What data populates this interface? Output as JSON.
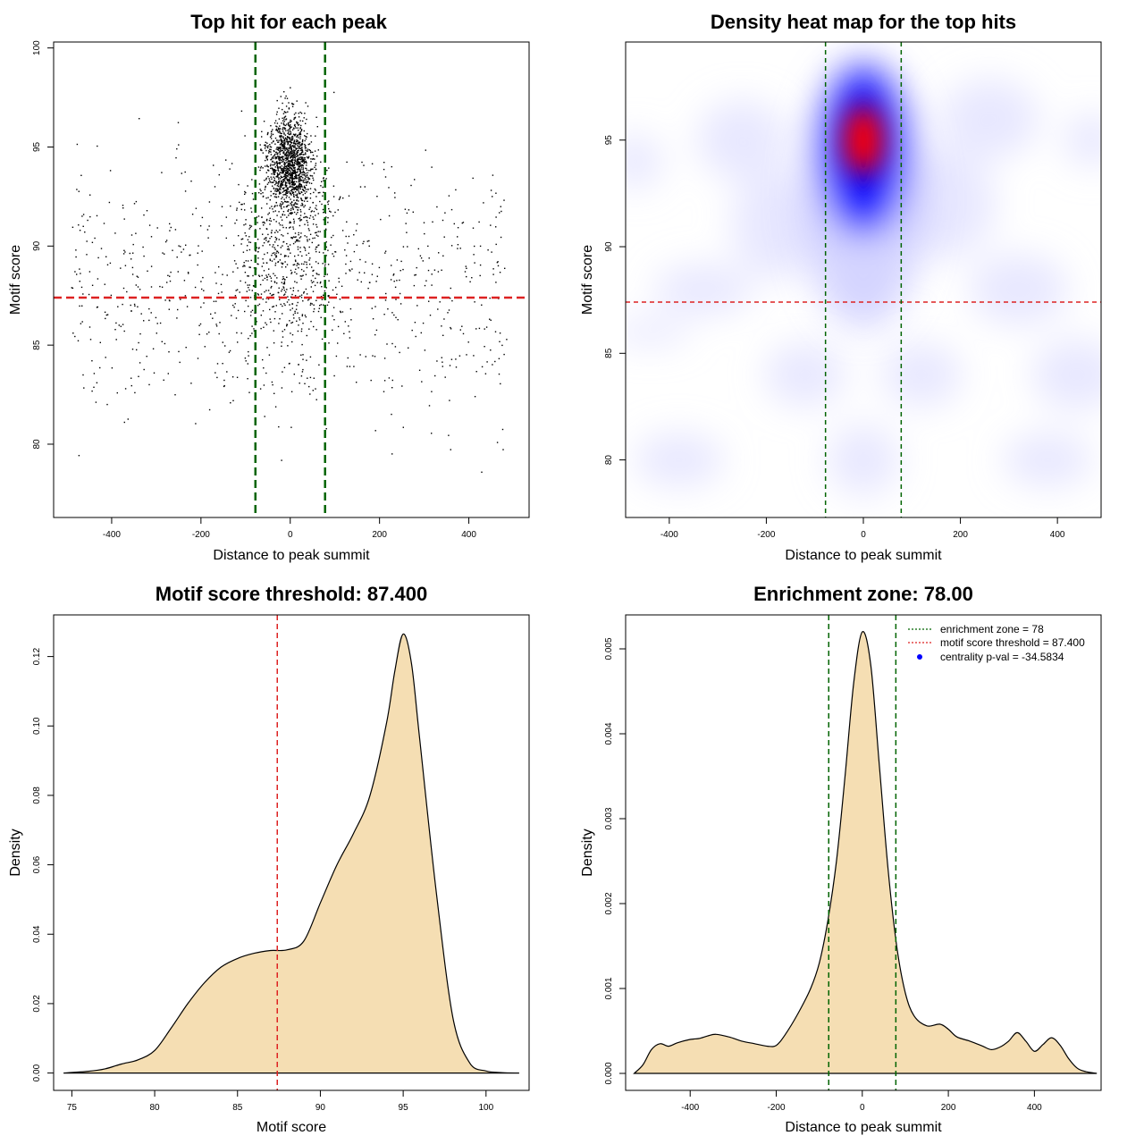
{
  "chart_data": [
    {
      "type": "scatter",
      "title": "Top hit for each peak",
      "xlabel": "Distance to peak summit",
      "ylabel": "Motif score",
      "xlim": [
        -530,
        535
      ],
      "ylim": [
        76.3,
        100.3
      ],
      "x_ticks": [
        "-400",
        "-200",
        "0",
        "200",
        "400"
      ],
      "y_ticks": [
        "80",
        "85",
        "90",
        "95",
        "100"
      ],
      "x_tick_values": [
        -400,
        -200,
        0,
        200,
        400
      ],
      "y_tick_values": [
        80,
        85,
        90,
        95,
        100
      ],
      "grid": false,
      "point_color": "#000000",
      "hlines": [
        {
          "value": 87.4,
          "color": "#dd2222"
        }
      ],
      "vlines": [
        {
          "value": -78,
          "color": "#006400"
        },
        {
          "value": 78,
          "color": "#006400"
        }
      ],
      "clusters": [
        {
          "x_center": 0,
          "x_spread": 42,
          "y_center": 94.2,
          "y_spread": 2.0,
          "count": 1300
        },
        {
          "x_center": 0,
          "x_spread": 95,
          "y_center": 90.0,
          "y_spread": 4.6,
          "count": 650
        },
        {
          "x_center": 0,
          "x_spread": 300,
          "y_center": 88.0,
          "y_spread": 5.5,
          "count": 750
        }
      ],
      "y_max": 99.3
    },
    {
      "type": "heatmap",
      "title": "Density heat map for the top hits",
      "xlabel": "Distance to peak summit",
      "ylabel": "Motif score",
      "xlim": [
        -490,
        490
      ],
      "ylim": [
        77.3,
        99.6
      ],
      "x_ticks": [
        "-400",
        "-200",
        "0",
        "200",
        "400"
      ],
      "y_ticks": [
        "80",
        "85",
        "90",
        "95"
      ],
      "x_tick_values": [
        -400,
        -200,
        0,
        200,
        400
      ],
      "y_tick_values": [
        80,
        85,
        90,
        95
      ],
      "colors": [
        "#ffffff",
        "#0000ff",
        "#ff0000"
      ],
      "peak": {
        "x": 0,
        "y": 95.0
      },
      "hlines": [
        {
          "value": 87.4,
          "color": "#dd2222"
        }
      ],
      "vlines": [
        {
          "value": -78,
          "color": "#006400"
        },
        {
          "value": 78,
          "color": "#006400"
        }
      ]
    },
    {
      "type": "area",
      "title": "Motif score threshold: 87.400",
      "xlabel": "Motif score",
      "ylabel": "Density",
      "xlim": [
        73.9,
        102.6
      ],
      "ylim": [
        -0.005,
        0.132
      ],
      "x_ticks": [
        "75",
        "80",
        "85",
        "90",
        "95",
        "100"
      ],
      "y_ticks": [
        "0.00",
        "0.02",
        "0.04",
        "0.06",
        "0.08",
        "0.10",
        "0.12"
      ],
      "x_tick_values": [
        75,
        80,
        85,
        90,
        95,
        100
      ],
      "y_tick_values": [
        0,
        0.02,
        0.04,
        0.06,
        0.08,
        0.1,
        0.12
      ],
      "fill_color": "#f5deb3",
      "line_color": "#000000",
      "vlines": [
        {
          "value": 87.4,
          "color": "#dd2222"
        }
      ],
      "x": [
        74.5,
        76,
        77,
        78,
        79,
        80,
        81,
        82,
        83,
        84,
        85,
        86,
        87,
        88,
        89,
        90,
        91,
        92,
        93,
        94,
        94.5,
        95,
        95.5,
        96,
        97,
        98,
        99,
        100,
        101,
        102
      ],
      "y": [
        0.0,
        0.0005,
        0.0012,
        0.0026,
        0.0038,
        0.0065,
        0.013,
        0.02,
        0.026,
        0.0305,
        0.033,
        0.0345,
        0.0353,
        0.0355,
        0.038,
        0.049,
        0.06,
        0.069,
        0.08,
        0.101,
        0.116,
        0.1265,
        0.118,
        0.096,
        0.052,
        0.016,
        0.003,
        0.0006,
        0.0001,
        0.0
      ]
    },
    {
      "type": "area",
      "title": "Enrichment zone: 78.00",
      "xlabel": "Distance to peak summit",
      "ylabel": "Density",
      "xlim": [
        -550,
        555
      ],
      "ylim": [
        -0.0002,
        0.0054
      ],
      "x_ticks": [
        "-400",
        "-200",
        "0",
        "200",
        "400"
      ],
      "y_ticks": [
        "0.000",
        "0.001",
        "0.002",
        "0.003",
        "0.004",
        "0.005"
      ],
      "x_tick_values": [
        -400,
        -200,
        0,
        200,
        400
      ],
      "y_tick_values": [
        0,
        0.001,
        0.002,
        0.003,
        0.004,
        0.005
      ],
      "fill_color": "#f5deb3",
      "line_color": "#000000",
      "vlines": [
        {
          "value": -78,
          "color": "#006400"
        },
        {
          "value": 78,
          "color": "#006400"
        }
      ],
      "x": [
        -530,
        -510,
        -490,
        -470,
        -450,
        -430,
        -400,
        -380,
        -360,
        -340,
        -310,
        -280,
        -250,
        -220,
        -200,
        -180,
        -150,
        -120,
        -100,
        -80,
        -60,
        -40,
        -20,
        0,
        20,
        40,
        60,
        80,
        100,
        120,
        150,
        180,
        200,
        220,
        250,
        280,
        300,
        320,
        340,
        360,
        380,
        400,
        420,
        440,
        460,
        480,
        500,
        520,
        545
      ],
      "y": [
        0.0,
        0.0001,
        0.00028,
        0.00035,
        0.00032,
        0.00036,
        0.0004,
        0.00041,
        0.00044,
        0.00046,
        0.00043,
        0.00038,
        0.00035,
        0.00032,
        0.00033,
        0.00045,
        0.0007,
        0.001,
        0.0013,
        0.0018,
        0.0025,
        0.0035,
        0.0046,
        0.0052,
        0.0048,
        0.0036,
        0.0024,
        0.0015,
        0.00095,
        0.00068,
        0.00056,
        0.00058,
        0.00052,
        0.00043,
        0.00038,
        0.00032,
        0.00028,
        0.00031,
        0.00038,
        0.00048,
        0.00038,
        0.00026,
        0.00034,
        0.00042,
        0.00033,
        0.00017,
        6e-05,
        2e-05,
        0.0
      ],
      "legend": {
        "position": "top-right",
        "entries": [
          {
            "label": "enrichment zone = 78",
            "color": "#006400",
            "style": "dotted-line"
          },
          {
            "label": "motif score threshold = 87.400",
            "color": "#dd2222",
            "style": "dotted-line"
          },
          {
            "label": "centrality p-val = -34.5834",
            "color": "#0000ff",
            "style": "point"
          }
        ]
      }
    }
  ]
}
